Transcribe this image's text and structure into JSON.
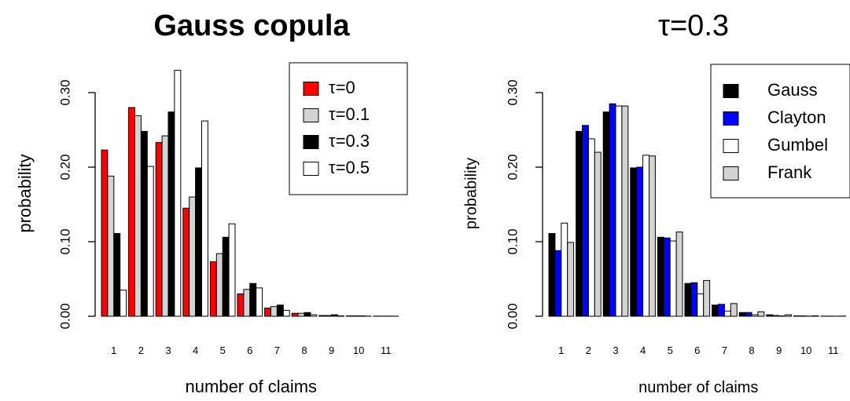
{
  "chart_data": [
    {
      "type": "bar",
      "title": "Gauss copula",
      "xlabel": "number of claims",
      "ylabel": "probability",
      "ylim": [
        0,
        0.34
      ],
      "yticks": [
        "0.00",
        "0.10",
        "0.20",
        "0.30"
      ],
      "ytick_values": [
        0,
        0.1,
        0.2,
        0.3
      ],
      "categories": [
        "1",
        "2",
        "3",
        "4",
        "5",
        "6",
        "7",
        "8",
        "9",
        "10",
        "11"
      ],
      "legend_position": "top-right",
      "series": [
        {
          "name": "τ=0",
          "color": "#ff0000",
          "values": [
            0.223,
            0.28,
            0.233,
            0.145,
            0.073,
            0.03,
            0.011,
            0.004,
            0.001,
            0.0005,
            0.0002
          ]
        },
        {
          "name": "τ=0.1",
          "color": "#d3d3d3",
          "values": [
            0.188,
            0.269,
            0.242,
            0.16,
            0.084,
            0.036,
            0.013,
            0.004,
            0.001,
            0.0005,
            0.0002
          ]
        },
        {
          "name": "τ=0.3",
          "color": "#000000",
          "values": [
            0.111,
            0.248,
            0.274,
            0.199,
            0.106,
            0.044,
            0.015,
            0.005,
            0.002,
            0.0005,
            0.0002
          ]
        },
        {
          "name": "τ=0.5",
          "color": "#ffffff",
          "values": [
            0.035,
            0.201,
            0.33,
            0.262,
            0.124,
            0.038,
            0.008,
            0.002,
            0.0005,
            0.0002,
            0.0001
          ]
        }
      ]
    },
    {
      "type": "bar",
      "title": "τ=0.3",
      "xlabel": "number of claims",
      "ylabel": "probability",
      "ylim": [
        0,
        0.34
      ],
      "yticks": [
        "0.00",
        "0.10",
        "0.20",
        "0.30"
      ],
      "ytick_values": [
        0,
        0.1,
        0.2,
        0.3
      ],
      "categories": [
        "1",
        "2",
        "3",
        "4",
        "5",
        "6",
        "7",
        "8",
        "9",
        "10",
        "11"
      ],
      "legend_position": "top-right",
      "series": [
        {
          "name": "Gauss",
          "color": "#000000",
          "values": [
            0.111,
            0.248,
            0.274,
            0.199,
            0.106,
            0.044,
            0.015,
            0.005,
            0.002,
            0.0005,
            0.0002
          ]
        },
        {
          "name": "Clayton",
          "color": "#0000ff",
          "values": [
            0.088,
            0.256,
            0.285,
            0.2,
            0.105,
            0.045,
            0.016,
            0.005,
            0.001,
            0.0005,
            0.0002
          ]
        },
        {
          "name": "Gumbel",
          "color": "#ffffff",
          "values": [
            0.125,
            0.238,
            0.282,
            0.216,
            0.101,
            0.03,
            0.007,
            0.002,
            0.0005,
            0.0002,
            0.0001
          ]
        },
        {
          "name": "Frank",
          "color": "#d3d3d3",
          "values": [
            0.099,
            0.22,
            0.282,
            0.215,
            0.113,
            0.048,
            0.017,
            0.006,
            0.002,
            0.0006,
            0.0002
          ]
        }
      ]
    }
  ]
}
